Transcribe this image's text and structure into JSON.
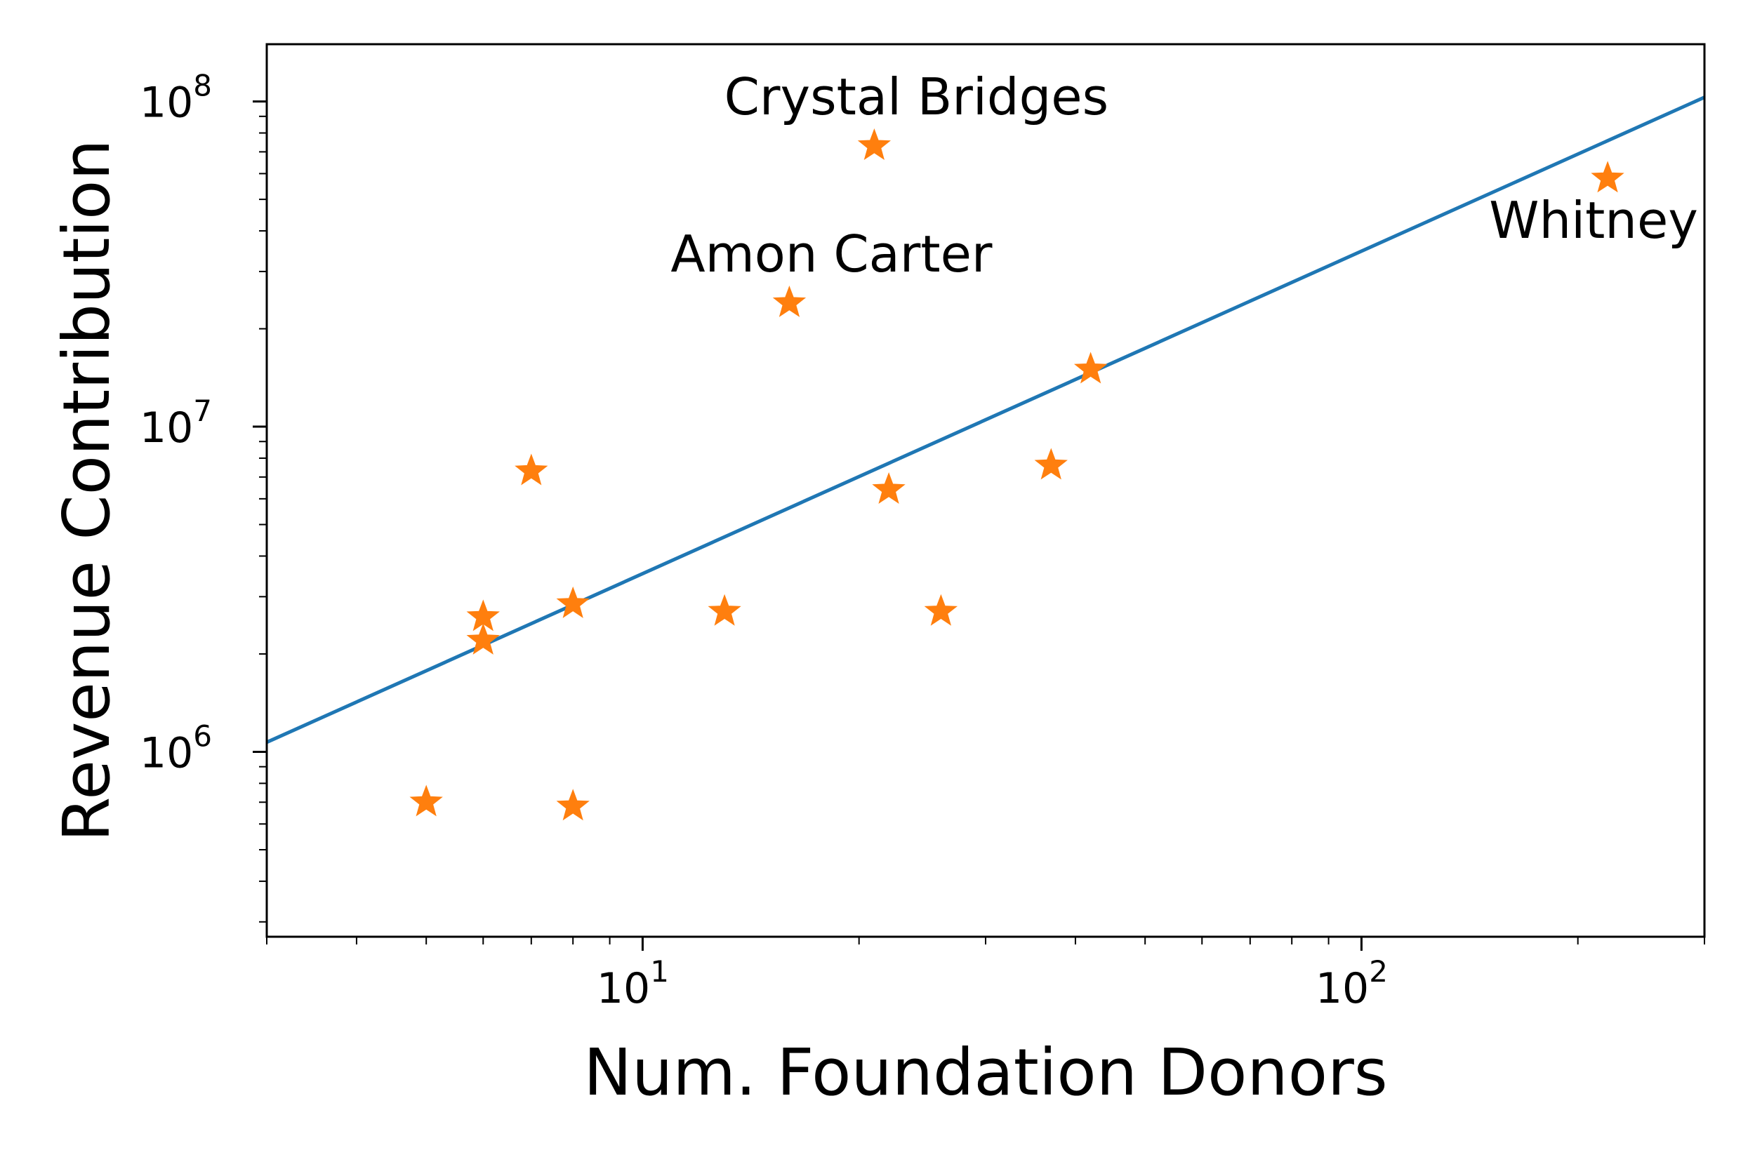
{
  "chart_data": {
    "type": "scatter",
    "title": "",
    "xlabel": "Num. Foundation Donors",
    "ylabel": "Revenue Contribution",
    "xscale": "log",
    "yscale": "log",
    "xlim": [
      3,
      300
    ],
    "ylim": [
      270000,
      150000000
    ],
    "grid": false,
    "legend": "none",
    "x_ticks": [
      {
        "base": "10",
        "exp": "1",
        "value": 10
      },
      {
        "base": "10",
        "exp": "2",
        "value": 100
      }
    ],
    "y_ticks": [
      {
        "base": "10",
        "exp": "6",
        "value": 1000000
      },
      {
        "base": "10",
        "exp": "7",
        "value": 10000000
      },
      {
        "base": "10",
        "exp": "8",
        "value": 100000000
      }
    ],
    "points": [
      {
        "x": 5,
        "y": 700000
      },
      {
        "x": 6,
        "y": 2600000
      },
      {
        "x": 6,
        "y": 2200000
      },
      {
        "x": 7,
        "y": 7300000
      },
      {
        "x": 8,
        "y": 2850000
      },
      {
        "x": 8,
        "y": 680000
      },
      {
        "x": 13,
        "y": 2700000
      },
      {
        "x": 16,
        "y": 24000000
      },
      {
        "x": 21,
        "y": 73000000
      },
      {
        "x": 22,
        "y": 6400000
      },
      {
        "x": 26,
        "y": 2700000
      },
      {
        "x": 37,
        "y": 7600000
      },
      {
        "x": 42,
        "y": 15000000
      },
      {
        "x": 220,
        "y": 58000000
      }
    ],
    "fit_line": {
      "x": [
        3,
        300
      ],
      "y": [
        1070000,
        103000000
      ]
    },
    "annotations": [
      {
        "text": "Crystal Bridges",
        "x": 21,
        "y": 73000000,
        "anchor": "above"
      },
      {
        "text": "Amon Carter",
        "x": 16,
        "y": 24000000,
        "anchor": "above"
      },
      {
        "text": "Whitney",
        "x": 220,
        "y": 58000000,
        "anchor": "below"
      }
    ],
    "colors": {
      "points": "#ff7f0e",
      "line": "#1f77b4"
    }
  }
}
